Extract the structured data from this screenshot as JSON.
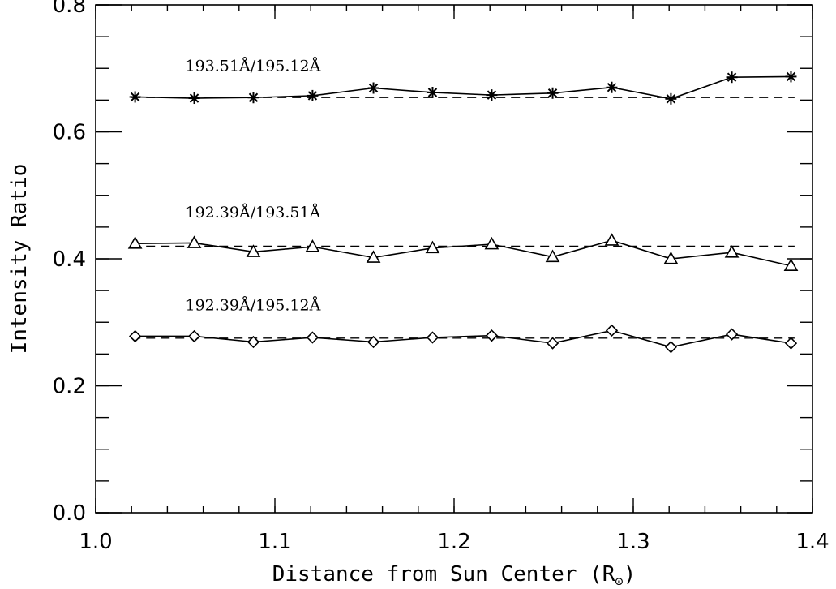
{
  "chart_data": {
    "type": "line",
    "title": "",
    "xlabel": "Distance from Sun Center (R",
    "xlabel_subscript": "⊙",
    "xlabel_close": ")",
    "ylabel": "Intensity Ratio",
    "xlim": [
      1.0,
      1.4
    ],
    "ylim": [
      0.0,
      0.8
    ],
    "x_ticks": [
      "1.0",
      "1.1",
      "1.2",
      "1.3",
      "1.4"
    ],
    "y_ticks": [
      "0.0",
      "0.2",
      "0.4",
      "0.6",
      "0.8"
    ],
    "x_tick_values": [
      1.0,
      1.1,
      1.2,
      1.3,
      1.4
    ],
    "y_tick_values": [
      0.0,
      0.2,
      0.4,
      0.6,
      0.8
    ],
    "x_minor_step": 0.02,
    "y_minor_step": 0.05,
    "grid": false,
    "x": [
      1.022,
      1.055,
      1.088,
      1.121,
      1.155,
      1.188,
      1.221,
      1.255,
      1.288,
      1.321,
      1.355,
      1.388
    ],
    "series": [
      {
        "name": "193.51Å/195.12Å",
        "marker": "asterisk",
        "values": [
          0.655,
          0.653,
          0.654,
          0.657,
          0.669,
          0.662,
          0.658,
          0.661,
          0.67,
          0.652,
          0.686,
          0.687
        ],
        "reference": 0.654
      },
      {
        "name": "192.39Å/193.51Å",
        "marker": "triangle",
        "values": [
          0.424,
          0.425,
          0.411,
          0.419,
          0.402,
          0.417,
          0.423,
          0.403,
          0.429,
          0.4,
          0.41,
          0.389
        ],
        "reference": 0.42
      },
      {
        "name": "192.39Å/195.12Å",
        "marker": "diamond",
        "values": [
          0.278,
          0.278,
          0.269,
          0.276,
          0.269,
          0.276,
          0.279,
          0.267,
          0.287,
          0.261,
          0.281,
          0.267
        ],
        "reference": 0.275
      }
    ],
    "line_color": "#000000"
  }
}
